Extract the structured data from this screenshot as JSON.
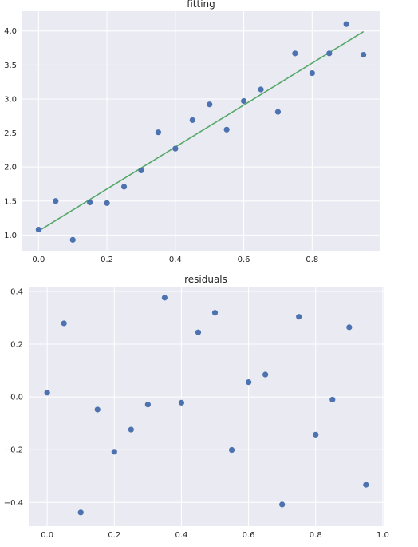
{
  "chart_data": [
    {
      "type": "scatter",
      "title": "fitting",
      "xlabel": "",
      "ylabel": "",
      "xlim": [
        -0.0475,
        0.9975
      ],
      "ylim": [
        0.77,
        4.29
      ],
      "xticks": [
        0.0,
        0.2,
        0.4,
        0.6,
        0.8
      ],
      "yticks": [
        1.0,
        1.5,
        2.0,
        2.5,
        3.0,
        3.5,
        4.0
      ],
      "xtick_labels": [
        "0.0",
        "0.2",
        "0.4",
        "0.6",
        "0.8"
      ],
      "ytick_labels": [
        "1.0",
        "1.5",
        "2.0",
        "2.5",
        "3.0",
        "3.5",
        "4.0"
      ],
      "grid": true,
      "series": [
        {
          "kind": "scatter",
          "color": "#4c72b0",
          "x": [
            0.0,
            0.05,
            0.1,
            0.15,
            0.2,
            0.25,
            0.3,
            0.35,
            0.4,
            0.45,
            0.5,
            0.55,
            0.6,
            0.65,
            0.7,
            0.75,
            0.8,
            0.85,
            0.9,
            0.95
          ],
          "y": [
            1.08,
            1.5,
            0.93,
            1.48,
            1.47,
            1.71,
            1.95,
            2.51,
            2.27,
            2.69,
            2.92,
            2.55,
            2.97,
            3.14,
            2.81,
            3.67,
            3.38,
            3.67,
            4.1,
            3.65
          ]
        },
        {
          "kind": "line",
          "color": "#55a868",
          "x": [
            0.0,
            0.95
          ],
          "y": [
            1.06,
            3.99
          ]
        }
      ]
    },
    {
      "type": "scatter",
      "title": "residuals",
      "xlabel": "",
      "ylabel": "",
      "xlim": [
        -0.055,
        1.005
      ],
      "ylim": [
        -0.49,
        0.415
      ],
      "xticks": [
        0.0,
        0.2,
        0.4,
        0.6,
        0.8,
        1.0
      ],
      "yticks": [
        -0.4,
        -0.2,
        0.0,
        0.2,
        0.4
      ],
      "xtick_labels": [
        "0.0",
        "0.2",
        "0.4",
        "0.6",
        "0.8",
        "1.0"
      ],
      "ytick_labels": [
        "−0.4",
        "−0.2",
        "0.0",
        "0.2",
        "0.4"
      ],
      "grid": true,
      "series": [
        {
          "kind": "scatter",
          "color": "#4c72b0",
          "x": [
            0.0,
            0.05,
            0.1,
            0.15,
            0.2,
            0.25,
            0.3,
            0.35,
            0.4,
            0.45,
            0.5,
            0.55,
            0.6,
            0.65,
            0.7,
            0.75,
            0.8,
            0.85,
            0.9,
            0.95
          ],
          "y": [
            0.016,
            0.279,
            -0.438,
            -0.048,
            -0.208,
            -0.124,
            -0.029,
            0.376,
            -0.022,
            0.245,
            0.319,
            -0.201,
            0.056,
            0.085,
            -0.408,
            0.304,
            -0.143,
            -0.01,
            0.264,
            -0.333
          ]
        }
      ]
    }
  ]
}
